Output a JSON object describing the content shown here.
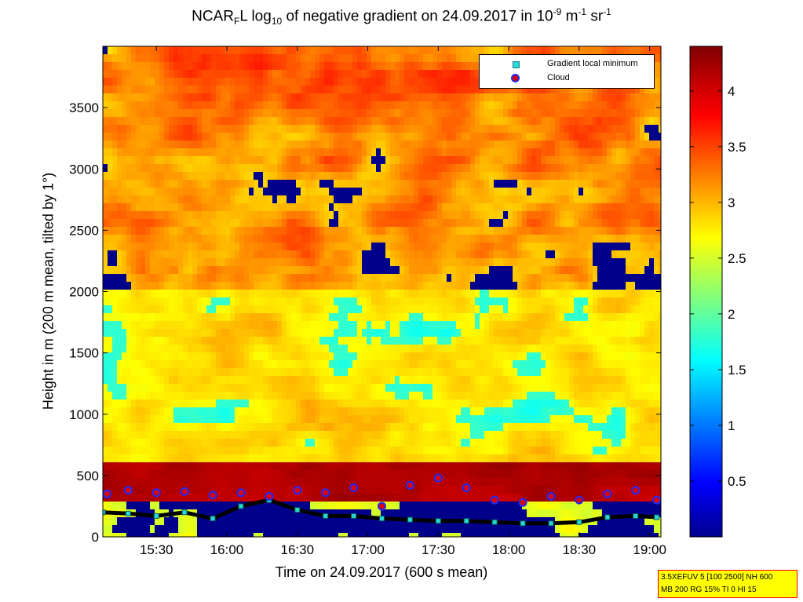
{
  "chart_data": {
    "type": "heatmap",
    "title_parts": {
      "pre": "NCAR",
      "sub1": "F",
      "mid1": "L log",
      "sub2": "10",
      "mid2": " of negative gradient on 24.09.2017 in 10",
      "sup1": "-9",
      "mid3": " m",
      "sup2": "-1",
      "mid4": " sr",
      "sup3": "-1"
    },
    "xlabel": "Time on 24.09.2017 (600 s mean)",
    "ylabel": "Height in m (200 m mean, tilted by 1°)",
    "x_ticks": [
      "15:30",
      "16:00",
      "16:30",
      "17:00",
      "17:30",
      "18:00",
      "18:30",
      "19:00"
    ],
    "x_tick_hours": [
      15.5,
      16.0,
      16.5,
      17.0,
      17.5,
      18.0,
      18.5,
      19.0
    ],
    "xlim_hours": [
      15.12,
      19.08
    ],
    "y_ticks": [
      "0",
      "500",
      "1000",
      "1500",
      "2000",
      "2500",
      "3000",
      "3500"
    ],
    "y_tick_values": [
      0,
      500,
      1000,
      1500,
      2000,
      2500,
      3000,
      3500
    ],
    "ylim": [
      0,
      4000
    ],
    "colorbar": {
      "ticks": [
        "0.5",
        "1",
        "1.5",
        "2",
        "2.5",
        "3",
        "3.5",
        "4"
      ],
      "tick_values": [
        0.5,
        1,
        1.5,
        2,
        2.5,
        3,
        3.5,
        4
      ],
      "range": [
        0,
        4.4
      ],
      "colormap": "jet"
    },
    "legend": {
      "placement": "top-right",
      "entries": [
        {
          "name": "Gradient local minimum",
          "marker": "cyan-square",
          "color": "#28d8d8"
        },
        {
          "name": "Cloud",
          "marker": "red-circle-blue-edge",
          "color": "#e00000"
        }
      ]
    },
    "series": [
      {
        "name": "Gradient local minimum",
        "x": [
          15.12,
          15.3,
          15.5,
          15.7,
          15.9,
          16.1,
          16.3,
          16.5,
          16.7,
          16.9,
          17.1,
          17.3,
          17.5,
          17.7,
          17.9,
          18.1,
          18.3,
          18.5,
          18.7,
          18.9,
          19.05
        ],
        "y": [
          200,
          190,
          170,
          200,
          150,
          250,
          300,
          220,
          170,
          170,
          150,
          140,
          130,
          130,
          120,
          110,
          110,
          120,
          160,
          170,
          160
        ]
      },
      {
        "name": "Cloud",
        "x": [
          15.15,
          15.3,
          15.5,
          15.7,
          15.9,
          16.1,
          16.3,
          16.5,
          16.7,
          16.9,
          17.1,
          17.3,
          17.5,
          17.7,
          17.9,
          18.1,
          18.3,
          18.5,
          18.7,
          18.9,
          19.05
        ],
        "y": [
          350,
          380,
          360,
          370,
          340,
          360,
          330,
          380,
          360,
          400,
          250,
          420,
          480,
          400,
          300,
          280,
          330,
          300,
          350,
          380,
          300
        ]
      }
    ]
  },
  "info_box": {
    "line1": "3.5XEFUV 5 [100 2500] NH 600",
    "line2": "MB 200 RG 15% TI 0 HI 15"
  }
}
